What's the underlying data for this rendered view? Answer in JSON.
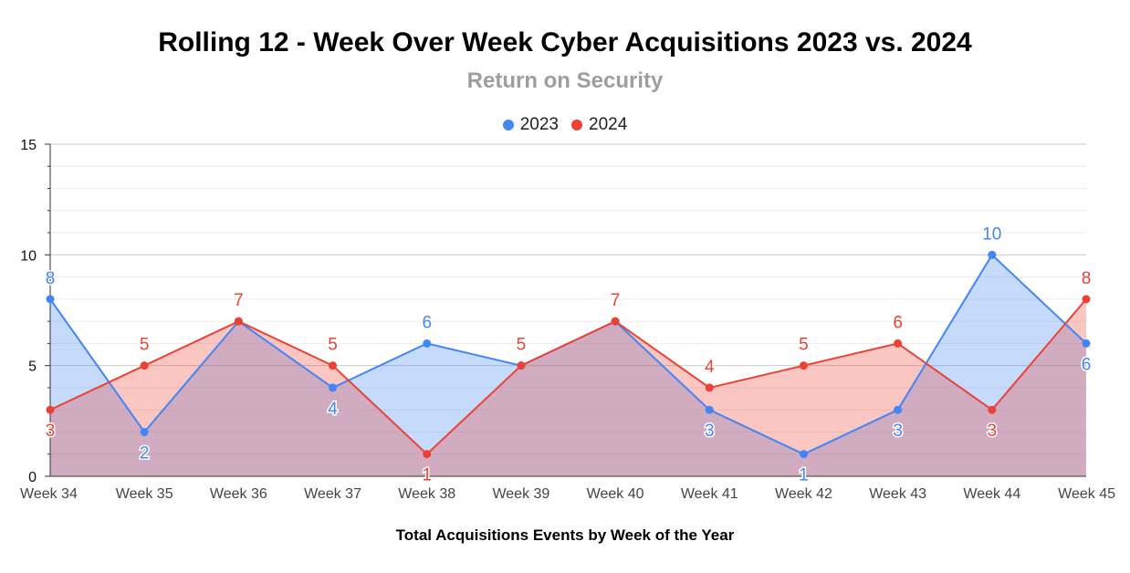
{
  "chart_data": {
    "type": "area",
    "title": "Rolling 12 - Week Over Week Cyber Acquisitions 2023 vs. 2024",
    "subtitle": "Return on Security",
    "xlabel": "Total Acquisitions Events by Week of the Year",
    "ylabel": "",
    "ylim": [
      0,
      15
    ],
    "yticks": [
      0,
      5,
      10,
      15
    ],
    "grid": true,
    "legend_position": "top",
    "categories": [
      "Week 34",
      "Week 35",
      "Week 36",
      "Week 37",
      "Week 38",
      "Week 39",
      "Week 40",
      "Week 41",
      "Week 42",
      "Week 43",
      "Week 44",
      "Week 45"
    ],
    "series": [
      {
        "name": "2023",
        "color": "#4285f4",
        "values": [
          8,
          2,
          7,
          4,
          6,
          5,
          7,
          3,
          1,
          3,
          10,
          6
        ]
      },
      {
        "name": "2024",
        "color": "#ea4335",
        "values": [
          3,
          5,
          7,
          5,
          1,
          5,
          7,
          4,
          5,
          6,
          3,
          8
        ]
      }
    ]
  }
}
